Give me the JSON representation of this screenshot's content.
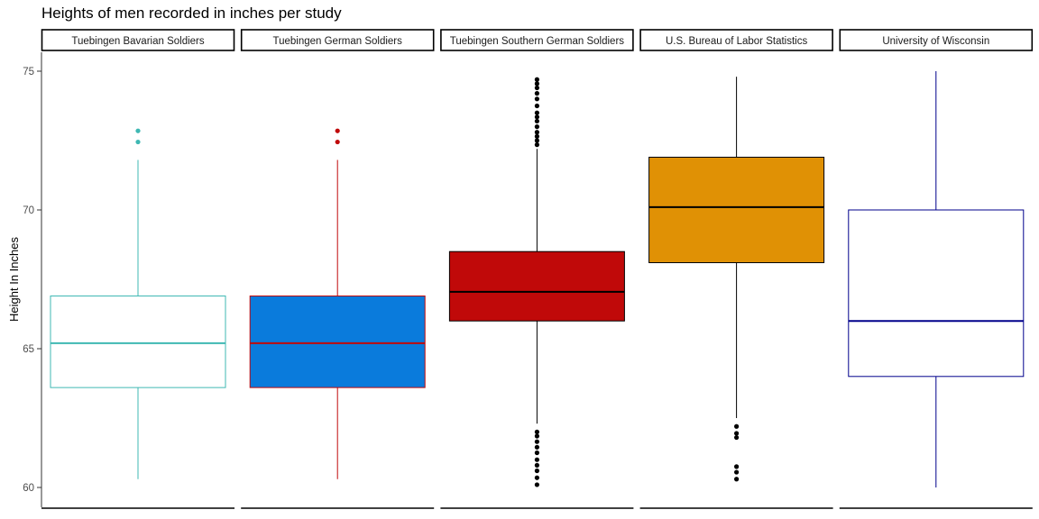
{
  "chart_data": {
    "type": "boxplot",
    "title": "Heights of men recorded in inches per study",
    "xlabel": "",
    "ylabel": "Height In Inches",
    "ylim": [
      60,
      75
    ],
    "yticks": [
      60,
      65,
      70,
      75
    ],
    "grid": false,
    "facets": [
      {
        "name": "Tuebingen Bavarian Soldiers",
        "fill": "#ffffff",
        "line": "#3fb8b3",
        "outlier_color": "#3fb8b3",
        "min": 60.3,
        "q1": 63.6,
        "median": 65.2,
        "q3": 66.9,
        "max": 71.8,
        "outliers": [
          72.45,
          72.85
        ]
      },
      {
        "name": "Tuebingen German Soldiers",
        "fill": "#0a7bdc",
        "line": "#c0090a",
        "outlier_color": "#c0090a",
        "min": 60.3,
        "q1": 63.6,
        "median": 65.2,
        "q3": 66.9,
        "max": 71.8,
        "outliers": [
          72.45,
          72.85
        ]
      },
      {
        "name": "Tuebingen Southern German Soldiers",
        "fill": "#c00909",
        "line": "#000000",
        "outlier_color": "#000000",
        "min": 62.3,
        "q1": 66.0,
        "median": 67.05,
        "q3": 68.5,
        "max": 72.2,
        "outliers": [
          72.35,
          72.5,
          72.65,
          72.8,
          73.0,
          73.2,
          73.35,
          73.5,
          73.75,
          74.0,
          74.2,
          74.4,
          74.55,
          74.7,
          60.1,
          60.35,
          60.6,
          60.8,
          61.0,
          61.25,
          61.45,
          61.65,
          61.85,
          62.0
        ]
      },
      {
        "name": "U.S. Bureau of Labor Statistics",
        "fill": "#e09105",
        "line": "#000000",
        "outlier_color": "#000000",
        "min": 62.5,
        "q1": 68.1,
        "median": 70.1,
        "q3": 71.9,
        "max": 74.8,
        "outliers": [
          62.2,
          61.95,
          61.8,
          60.75,
          60.55,
          60.3
        ]
      },
      {
        "name": "University of Wisconsin",
        "fill": "#ffffff",
        "line": "#00008b",
        "outlier_color": "#00008b",
        "min": 60.0,
        "q1": 64.0,
        "median": 66.0,
        "q3": 70.0,
        "max": 75.0,
        "outliers": []
      }
    ]
  }
}
